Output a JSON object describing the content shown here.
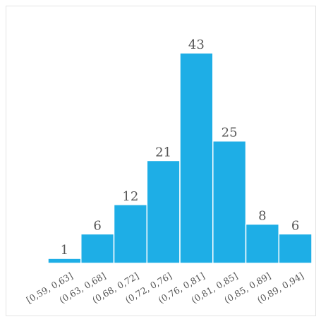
{
  "chart_data": {
    "type": "bar",
    "title": "",
    "xlabel": "",
    "ylabel": "",
    "categories": [
      "[0,59, 0,63]",
      "(0,63, 0,68]",
      "(0,68, 0,72]",
      "(0,72, 0,76]",
      "(0,76, 0,81]",
      "(0,81, 0,85]",
      "(0,85, 0,89]",
      "(0,89, 0,94]"
    ],
    "values": [
      1,
      6,
      12,
      21,
      43,
      25,
      8,
      6
    ],
    "ylim": [
      0,
      43
    ],
    "grid": false,
    "legend": "none",
    "bar_color": "#1eaee6",
    "edge_color": "#ffffff",
    "data_labels": true
  }
}
